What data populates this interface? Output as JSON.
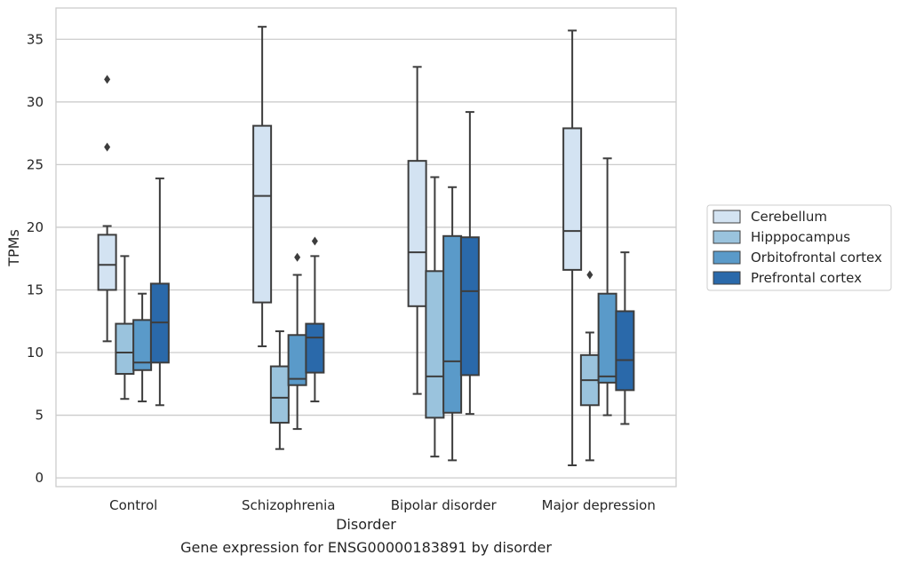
{
  "chart_data": {
    "type": "box",
    "caption": "Gene expression for ENSG00000183891 by disorder",
    "xlabel": "Disorder",
    "ylabel": "TPMs",
    "ylim": [
      -0.7,
      37.5
    ],
    "yticks": [
      0,
      5,
      10,
      15,
      20,
      25,
      30,
      35
    ],
    "grid": true,
    "legend_position": "right",
    "categories": [
      "Control",
      "Schizophrenia",
      "Bipolar disorder",
      "Major depression"
    ],
    "series": [
      {
        "name": "Cerebellum",
        "color": "#d3e3f2",
        "boxes": [
          {
            "whislo": 10.9,
            "q1": 15.0,
            "med": 17.0,
            "q3": 19.4,
            "whishi": 20.1,
            "fliers": [
              26.4,
              31.8
            ]
          },
          {
            "whislo": 10.5,
            "q1": 14.0,
            "med": 22.5,
            "q3": 28.1,
            "whishi": 36.0,
            "fliers": []
          },
          {
            "whislo": 6.7,
            "q1": 13.7,
            "med": 18.0,
            "q3": 25.3,
            "whishi": 32.8,
            "fliers": []
          },
          {
            "whislo": 1.0,
            "q1": 16.6,
            "med": 19.7,
            "q3": 27.9,
            "whishi": 35.7,
            "fliers": []
          }
        ]
      },
      {
        "name": "Hipppocampus",
        "color": "#9ac3dd",
        "boxes": [
          {
            "whislo": 6.3,
            "q1": 8.3,
            "med": 10.0,
            "q3": 12.3,
            "whishi": 17.7,
            "fliers": []
          },
          {
            "whislo": 2.3,
            "q1": 4.4,
            "med": 6.4,
            "q3": 8.9,
            "whishi": 11.7,
            "fliers": []
          },
          {
            "whislo": 1.7,
            "q1": 4.8,
            "med": 8.1,
            "q3": 16.5,
            "whishi": 24.0,
            "fliers": []
          },
          {
            "whislo": 1.4,
            "q1": 5.8,
            "med": 7.8,
            "q3": 9.8,
            "whishi": 11.6,
            "fliers": [
              16.2
            ]
          }
        ]
      },
      {
        "name": "Orbitofrontal cortex",
        "color": "#5a9ac9",
        "boxes": [
          {
            "whislo": 6.1,
            "q1": 8.6,
            "med": 9.2,
            "q3": 12.6,
            "whishi": 14.7,
            "fliers": []
          },
          {
            "whislo": 3.9,
            "q1": 7.4,
            "med": 7.9,
            "q3": 11.4,
            "whishi": 16.2,
            "fliers": [
              17.6
            ]
          },
          {
            "whislo": 1.4,
            "q1": 5.2,
            "med": 9.3,
            "q3": 19.3,
            "whishi": 23.2,
            "fliers": []
          },
          {
            "whislo": 5.0,
            "q1": 7.6,
            "med": 8.1,
            "q3": 14.7,
            "whishi": 25.5,
            "fliers": []
          }
        ]
      },
      {
        "name": "Prefrontal cortex",
        "color": "#2a69aa",
        "boxes": [
          {
            "whislo": 5.8,
            "q1": 9.2,
            "med": 12.4,
            "q3": 15.5,
            "whishi": 23.9,
            "fliers": []
          },
          {
            "whislo": 6.1,
            "q1": 8.4,
            "med": 11.2,
            "q3": 12.3,
            "whishi": 17.7,
            "fliers": [
              18.9
            ]
          },
          {
            "whislo": 5.1,
            "q1": 8.2,
            "med": 14.9,
            "q3": 19.2,
            "whishi": 29.2,
            "fliers": []
          },
          {
            "whislo": 4.3,
            "q1": 7.0,
            "med": 9.4,
            "q3": 13.3,
            "whishi": 18.0,
            "fliers": []
          }
        ]
      }
    ]
  }
}
